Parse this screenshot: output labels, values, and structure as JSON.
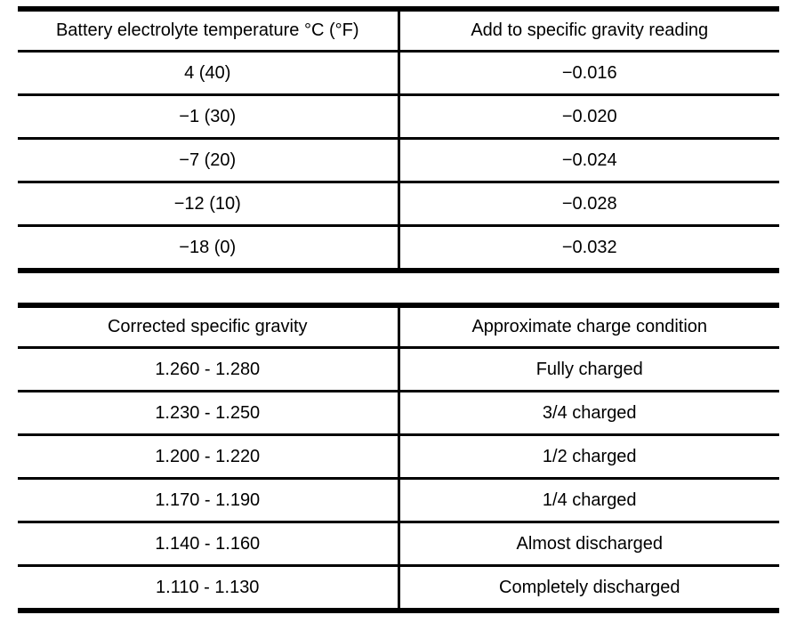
{
  "colors": {
    "background": "#ffffff",
    "text": "#000000",
    "border": "#000000"
  },
  "tables": [
    {
      "id": "temperature-correction",
      "headers": [
        "Battery electrolyte temperature °C (°F)",
        "Add to specific gravity reading"
      ],
      "rows": [
        [
          "4 (40)",
          "−0.016"
        ],
        [
          "−1 (30)",
          "−0.020"
        ],
        [
          "−7 (20)",
          "−0.024"
        ],
        [
          "−12 (10)",
          "−0.028"
        ],
        [
          "−18 (0)",
          "−0.032"
        ]
      ]
    },
    {
      "id": "charge-condition",
      "headers": [
        "Corrected specific gravity",
        "Approximate charge condition"
      ],
      "rows": [
        [
          "1.260 - 1.280",
          "Fully charged"
        ],
        [
          "1.230 - 1.250",
          "3/4 charged"
        ],
        [
          "1.200 - 1.220",
          "1/2 charged"
        ],
        [
          "1.170 - 1.190",
          "1/4 charged"
        ],
        [
          "1.140 - 1.160",
          "Almost discharged"
        ],
        [
          "1.110 - 1.130",
          "Completely discharged"
        ]
      ]
    }
  ]
}
